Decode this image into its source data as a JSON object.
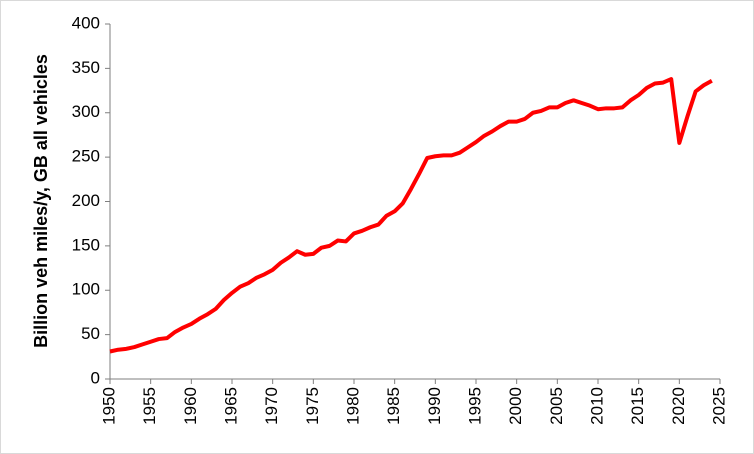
{
  "chart_data": {
    "type": "line",
    "y_label": "Billion veh miles/y, GB all vehicles",
    "x": [
      1950,
      1951,
      1952,
      1953,
      1954,
      1955,
      1956,
      1957,
      1958,
      1959,
      1960,
      1961,
      1962,
      1963,
      1964,
      1965,
      1966,
      1967,
      1968,
      1969,
      1970,
      1971,
      1972,
      1973,
      1974,
      1975,
      1976,
      1977,
      1978,
      1979,
      1980,
      1981,
      1982,
      1983,
      1984,
      1985,
      1986,
      1987,
      1988,
      1989,
      1990,
      1991,
      1992,
      1993,
      1994,
      1995,
      1996,
      1997,
      1998,
      1999,
      2000,
      2001,
      2002,
      2003,
      2004,
      2005,
      2006,
      2007,
      2008,
      2009,
      2010,
      2011,
      2012,
      2013,
      2014,
      2015,
      2016,
      2017,
      2018,
      2019,
      2020,
      2021,
      2022,
      2023,
      2024
    ],
    "values": [
      31,
      33,
      34,
      36,
      39,
      42,
      45,
      46,
      53,
      58,
      62,
      68,
      73,
      79,
      89,
      97,
      104,
      108,
      114,
      118,
      123,
      131,
      137,
      144,
      140,
      141,
      148,
      150,
      156,
      155,
      164,
      167,
      171,
      174,
      184,
      189,
      198,
      214,
      231,
      249,
      251,
      252,
      252,
      255,
      261,
      267,
      274,
      279,
      285,
      290,
      290,
      293,
      300,
      302,
      306,
      306,
      311,
      314,
      311,
      308,
      304,
      305,
      305,
      306,
      314,
      320,
      328,
      333,
      334,
      338,
      266,
      296,
      324,
      331,
      336
    ],
    "color": "#ff0000",
    "xlim": [
      1950,
      2025
    ],
    "xticks": [
      1950,
      1955,
      1960,
      1965,
      1970,
      1975,
      1980,
      1985,
      1990,
      1995,
      2000,
      2005,
      2010,
      2015,
      2020,
      2025
    ],
    "ylim": [
      0,
      400
    ],
    "yticks": [
      0,
      50,
      100,
      150,
      200,
      250,
      300,
      350,
      400
    ],
    "grid": false
  }
}
